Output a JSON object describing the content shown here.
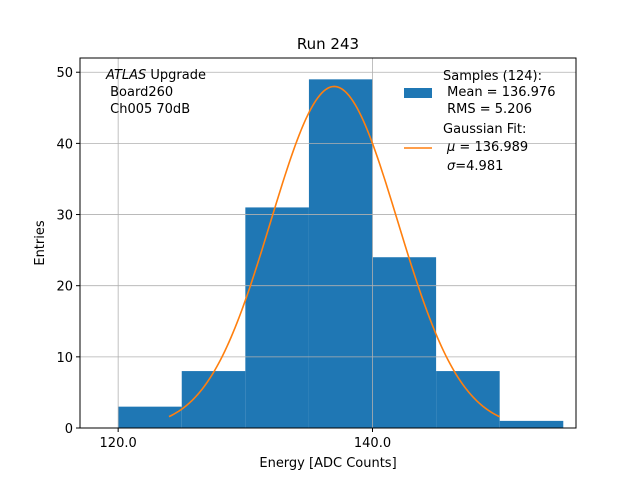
{
  "chart_data": {
    "type": "bar",
    "title": "Run 243",
    "xlabel": "Energy [ADC Counts]",
    "ylabel": "Entries",
    "xlim": [
      117.0,
      156.0
    ],
    "ylim": [
      0,
      52
    ],
    "xticks": [
      120.0,
      140.0
    ],
    "xtick_labels": [
      "120.0",
      "140.0"
    ],
    "yticks": [
      0,
      10,
      20,
      30,
      40,
      50
    ],
    "ytick_labels": [
      "0",
      "10",
      "20",
      "30",
      "40",
      "50"
    ],
    "grid": true,
    "bins": [
      {
        "left": 120,
        "right": 125,
        "count": 3
      },
      {
        "left": 125,
        "right": 130,
        "count": 8
      },
      {
        "left": 130,
        "right": 135,
        "count": 31
      },
      {
        "left": 135,
        "right": 140,
        "count": 49
      },
      {
        "left": 140,
        "right": 145,
        "count": 24
      },
      {
        "left": 145,
        "right": 150,
        "count": 8
      },
      {
        "left": 150,
        "right": 155,
        "count": 1
      }
    ],
    "fit": {
      "type": "gaussian",
      "amplitude": 48.0,
      "mu": 136.989,
      "sigma": 4.981,
      "x_range": [
        124.0,
        150.0
      ]
    },
    "colors": {
      "bars": "#1f77b4",
      "fit": "#ff7f0e",
      "grid": "#b0b0b0"
    },
    "annotation": {
      "line1_italic": "ATLAS",
      "line1_rest": " Upgrade",
      "line2": " Board260",
      "line3": " Ch005 70dB"
    },
    "legend": {
      "placement": "top-right",
      "samples_title": "Samples (124):",
      "samples_mean": " Mean = 136.976",
      "samples_rms": " RMS = 5.206",
      "fit_title": "Gaussian Fit:",
      "fit_mu_symbol": "μ",
      "fit_mu_value": " = 136.989",
      "fit_sigma_symbol": "σ",
      "fit_sigma_value": "=4.981"
    }
  }
}
